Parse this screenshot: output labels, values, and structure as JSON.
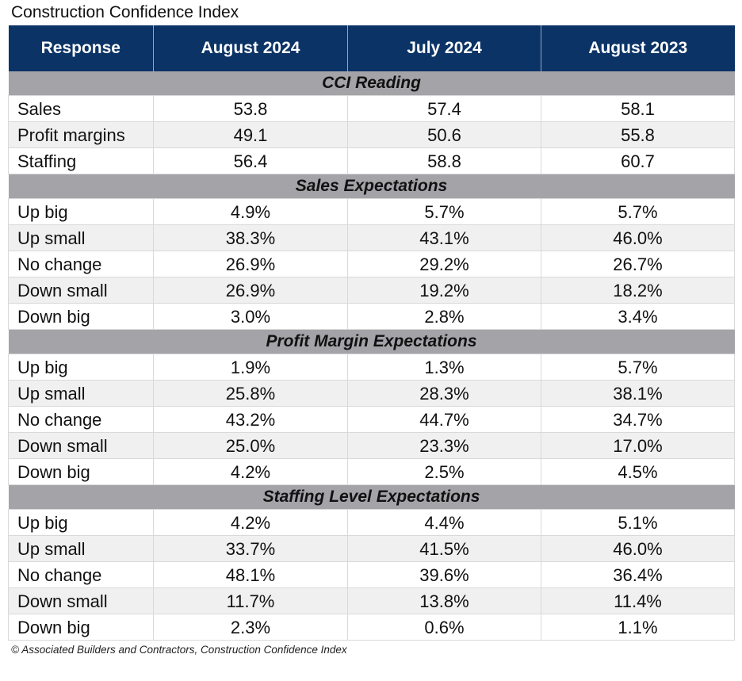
{
  "title": "Construction Confidence Index",
  "footer": "© Associated Builders and Contractors, Construction Confidence Index",
  "colors": {
    "header_bg": "#0b3366",
    "section_bg": "#a3a3a8",
    "alt_row_bg": "#f0f0f0"
  },
  "chart_data": {
    "type": "table",
    "title": "Construction Confidence Index",
    "columns": [
      "Response",
      "August 2024",
      "July 2024",
      "August 2023"
    ],
    "sections": [
      {
        "name": "CCI Reading",
        "rows": [
          [
            "Sales",
            "53.8",
            "57.4",
            "58.1"
          ],
          [
            "Profit margins",
            "49.1",
            "50.6",
            "55.8"
          ],
          [
            "Staffing",
            "56.4",
            "58.8",
            "60.7"
          ]
        ]
      },
      {
        "name": "Sales Expectations",
        "rows": [
          [
            "Up big",
            "4.9%",
            "5.7%",
            "5.7%"
          ],
          [
            "Up small",
            "38.3%",
            "43.1%",
            "46.0%"
          ],
          [
            "No change",
            "26.9%",
            "29.2%",
            "26.7%"
          ],
          [
            "Down small",
            "26.9%",
            "19.2%",
            "18.2%"
          ],
          [
            "Down big",
            "3.0%",
            "2.8%",
            "3.4%"
          ]
        ]
      },
      {
        "name": "Profit Margin Expectations",
        "rows": [
          [
            "Up big",
            "1.9%",
            "1.3%",
            "5.7%"
          ],
          [
            "Up small",
            "25.8%",
            "28.3%",
            "38.1%"
          ],
          [
            "No change",
            "43.2%",
            "44.7%",
            "34.7%"
          ],
          [
            "Down small",
            "25.0%",
            "23.3%",
            "17.0%"
          ],
          [
            "Down big",
            "4.2%",
            "2.5%",
            "4.5%"
          ]
        ]
      },
      {
        "name": "Staffing Level Expectations",
        "rows": [
          [
            "Up big",
            "4.2%",
            "4.4%",
            "5.1%"
          ],
          [
            "Up small",
            "33.7%",
            "41.5%",
            "46.0%"
          ],
          [
            "No change",
            "48.1%",
            "39.6%",
            "36.4%"
          ],
          [
            "Down small",
            "11.7%",
            "13.8%",
            "11.4%"
          ],
          [
            "Down big",
            "2.3%",
            "0.6%",
            "1.1%"
          ]
        ]
      }
    ]
  }
}
